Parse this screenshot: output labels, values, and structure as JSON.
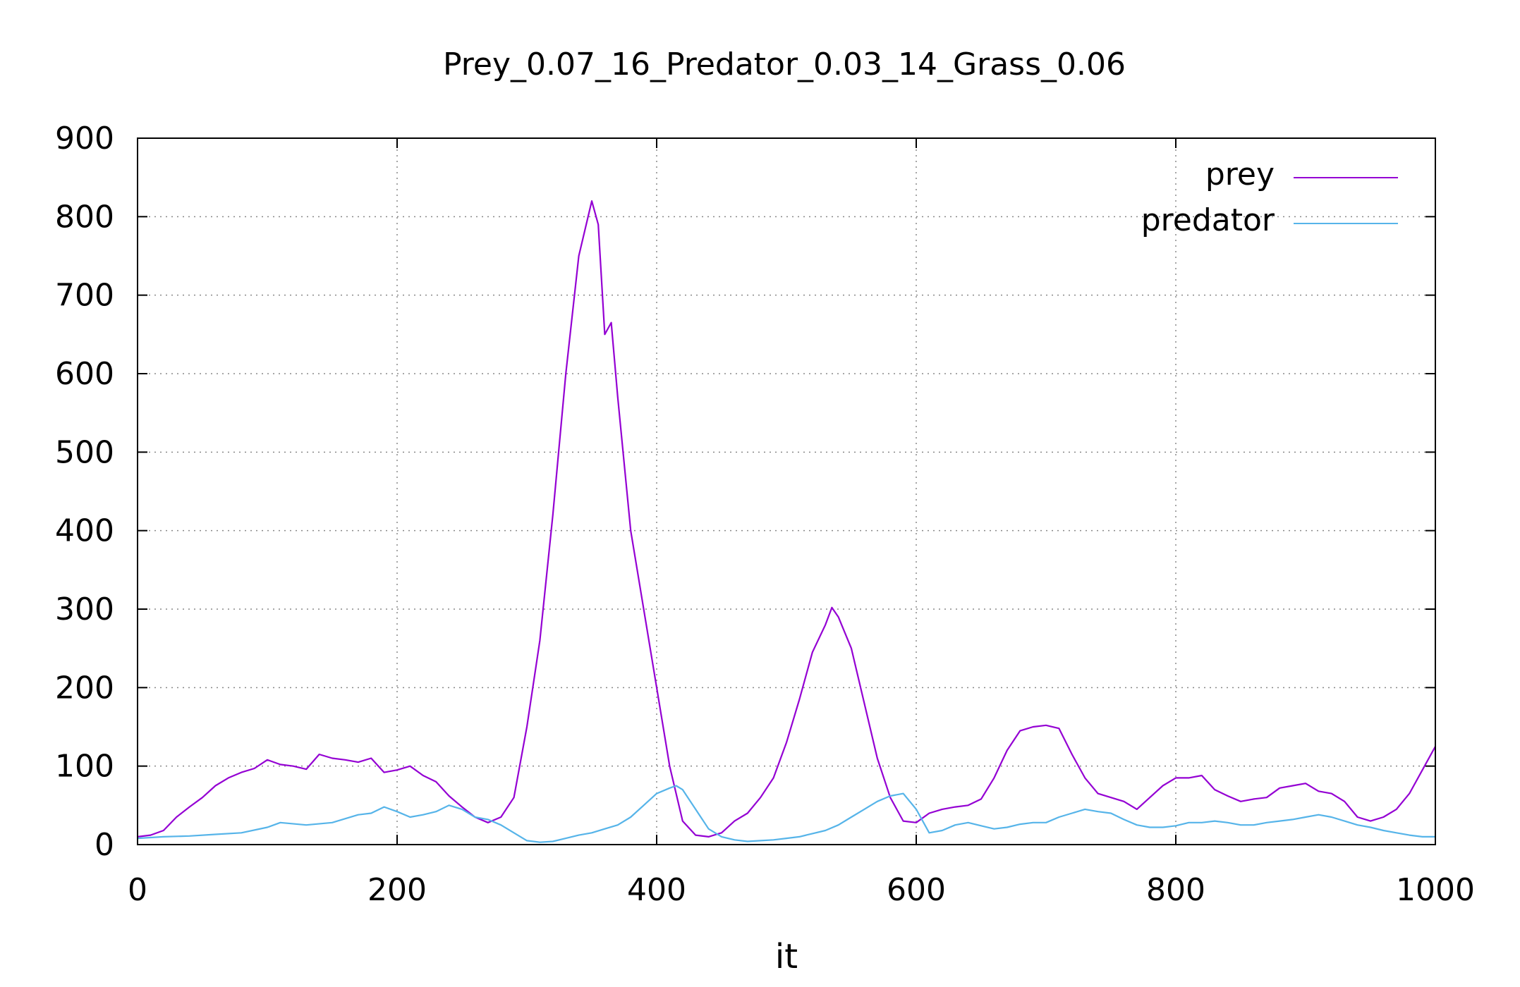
{
  "chart_data": {
    "type": "line",
    "title": "Prey_0.07_16_Predator_0.03_14_Grass_0.06",
    "xlabel": "it",
    "ylabel": "",
    "xlim": [
      0,
      1000
    ],
    "ylim": [
      0,
      900
    ],
    "xticks": [
      0,
      200,
      400,
      600,
      800,
      1000
    ],
    "yticks": [
      0,
      100,
      200,
      300,
      400,
      500,
      600,
      700,
      800,
      900
    ],
    "grid": true,
    "legend_position": "top-right",
    "series": [
      {
        "name": "prey",
        "color": "#9400d3",
        "points": [
          [
            0,
            10
          ],
          [
            10,
            12
          ],
          [
            20,
            18
          ],
          [
            30,
            35
          ],
          [
            40,
            48
          ],
          [
            50,
            60
          ],
          [
            60,
            75
          ],
          [
            70,
            85
          ],
          [
            80,
            92
          ],
          [
            90,
            97
          ],
          [
            100,
            108
          ],
          [
            110,
            102
          ],
          [
            120,
            100
          ],
          [
            130,
            96
          ],
          [
            140,
            115
          ],
          [
            150,
            110
          ],
          [
            160,
            108
          ],
          [
            170,
            105
          ],
          [
            180,
            110
          ],
          [
            190,
            92
          ],
          [
            200,
            95
          ],
          [
            210,
            100
          ],
          [
            220,
            88
          ],
          [
            230,
            80
          ],
          [
            240,
            62
          ],
          [
            250,
            48
          ],
          [
            260,
            35
          ],
          [
            270,
            28
          ],
          [
            280,
            35
          ],
          [
            290,
            60
          ],
          [
            300,
            150
          ],
          [
            310,
            260
          ],
          [
            320,
            420
          ],
          [
            330,
            600
          ],
          [
            340,
            750
          ],
          [
            350,
            820
          ],
          [
            355,
            790
          ],
          [
            360,
            650
          ],
          [
            365,
            665
          ],
          [
            370,
            570
          ],
          [
            380,
            400
          ],
          [
            390,
            300
          ],
          [
            400,
            200
          ],
          [
            410,
            100
          ],
          [
            420,
            30
          ],
          [
            430,
            12
          ],
          [
            440,
            10
          ],
          [
            450,
            15
          ],
          [
            460,
            30
          ],
          [
            470,
            40
          ],
          [
            480,
            60
          ],
          [
            490,
            85
          ],
          [
            500,
            130
          ],
          [
            510,
            185
          ],
          [
            520,
            245
          ],
          [
            530,
            280
          ],
          [
            535,
            302
          ],
          [
            540,
            290
          ],
          [
            550,
            250
          ],
          [
            560,
            180
          ],
          [
            570,
            110
          ],
          [
            580,
            60
          ],
          [
            590,
            30
          ],
          [
            600,
            28
          ],
          [
            610,
            40
          ],
          [
            620,
            45
          ],
          [
            630,
            48
          ],
          [
            640,
            50
          ],
          [
            650,
            58
          ],
          [
            660,
            85
          ],
          [
            670,
            120
          ],
          [
            680,
            145
          ],
          [
            690,
            150
          ],
          [
            700,
            152
          ],
          [
            710,
            148
          ],
          [
            720,
            115
          ],
          [
            730,
            85
          ],
          [
            740,
            65
          ],
          [
            750,
            60
          ],
          [
            760,
            55
          ],
          [
            770,
            45
          ],
          [
            780,
            60
          ],
          [
            790,
            75
          ],
          [
            800,
            85
          ],
          [
            810,
            85
          ],
          [
            820,
            88
          ],
          [
            830,
            70
          ],
          [
            840,
            62
          ],
          [
            850,
            55
          ],
          [
            860,
            58
          ],
          [
            870,
            60
          ],
          [
            880,
            72
          ],
          [
            890,
            75
          ],
          [
            900,
            78
          ],
          [
            910,
            68
          ],
          [
            920,
            65
          ],
          [
            930,
            55
          ],
          [
            940,
            35
          ],
          [
            950,
            30
          ],
          [
            960,
            35
          ],
          [
            970,
            45
          ],
          [
            980,
            65
          ],
          [
            990,
            95
          ],
          [
            1000,
            125
          ]
        ]
      },
      {
        "name": "predator",
        "color": "#56b4e9",
        "points": [
          [
            0,
            8
          ],
          [
            20,
            10
          ],
          [
            40,
            11
          ],
          [
            60,
            13
          ],
          [
            80,
            15
          ],
          [
            100,
            22
          ],
          [
            110,
            28
          ],
          [
            130,
            25
          ],
          [
            150,
            28
          ],
          [
            170,
            38
          ],
          [
            180,
            40
          ],
          [
            190,
            48
          ],
          [
            200,
            42
          ],
          [
            210,
            35
          ],
          [
            220,
            38
          ],
          [
            230,
            42
          ],
          [
            240,
            50
          ],
          [
            250,
            45
          ],
          [
            260,
            35
          ],
          [
            270,
            32
          ],
          [
            280,
            25
          ],
          [
            290,
            15
          ],
          [
            300,
            5
          ],
          [
            310,
            3
          ],
          [
            320,
            4
          ],
          [
            330,
            8
          ],
          [
            340,
            12
          ],
          [
            350,
            15
          ],
          [
            360,
            20
          ],
          [
            370,
            25
          ],
          [
            380,
            35
          ],
          [
            390,
            50
          ],
          [
            400,
            65
          ],
          [
            410,
            72
          ],
          [
            415,
            75
          ],
          [
            420,
            70
          ],
          [
            430,
            45
          ],
          [
            440,
            20
          ],
          [
            450,
            10
          ],
          [
            460,
            6
          ],
          [
            470,
            4
          ],
          [
            480,
            5
          ],
          [
            490,
            6
          ],
          [
            500,
            8
          ],
          [
            510,
            10
          ],
          [
            520,
            14
          ],
          [
            530,
            18
          ],
          [
            540,
            25
          ],
          [
            550,
            35
          ],
          [
            560,
            45
          ],
          [
            570,
            55
          ],
          [
            580,
            62
          ],
          [
            590,
            65
          ],
          [
            600,
            45
          ],
          [
            610,
            15
          ],
          [
            620,
            18
          ],
          [
            630,
            25
          ],
          [
            640,
            28
          ],
          [
            650,
            24
          ],
          [
            660,
            20
          ],
          [
            670,
            22
          ],
          [
            680,
            26
          ],
          [
            690,
            28
          ],
          [
            700,
            28
          ],
          [
            710,
            35
          ],
          [
            720,
            40
          ],
          [
            730,
            45
          ],
          [
            740,
            42
          ],
          [
            750,
            40
          ],
          [
            760,
            32
          ],
          [
            770,
            25
          ],
          [
            780,
            22
          ],
          [
            790,
            22
          ],
          [
            800,
            24
          ],
          [
            810,
            28
          ],
          [
            820,
            28
          ],
          [
            830,
            30
          ],
          [
            840,
            28
          ],
          [
            850,
            25
          ],
          [
            860,
            25
          ],
          [
            870,
            28
          ],
          [
            880,
            30
          ],
          [
            890,
            32
          ],
          [
            900,
            35
          ],
          [
            910,
            38
          ],
          [
            920,
            35
          ],
          [
            930,
            30
          ],
          [
            940,
            25
          ],
          [
            950,
            22
          ],
          [
            960,
            18
          ],
          [
            970,
            15
          ],
          [
            980,
            12
          ],
          [
            990,
            10
          ],
          [
            1000,
            10
          ]
        ]
      }
    ]
  }
}
